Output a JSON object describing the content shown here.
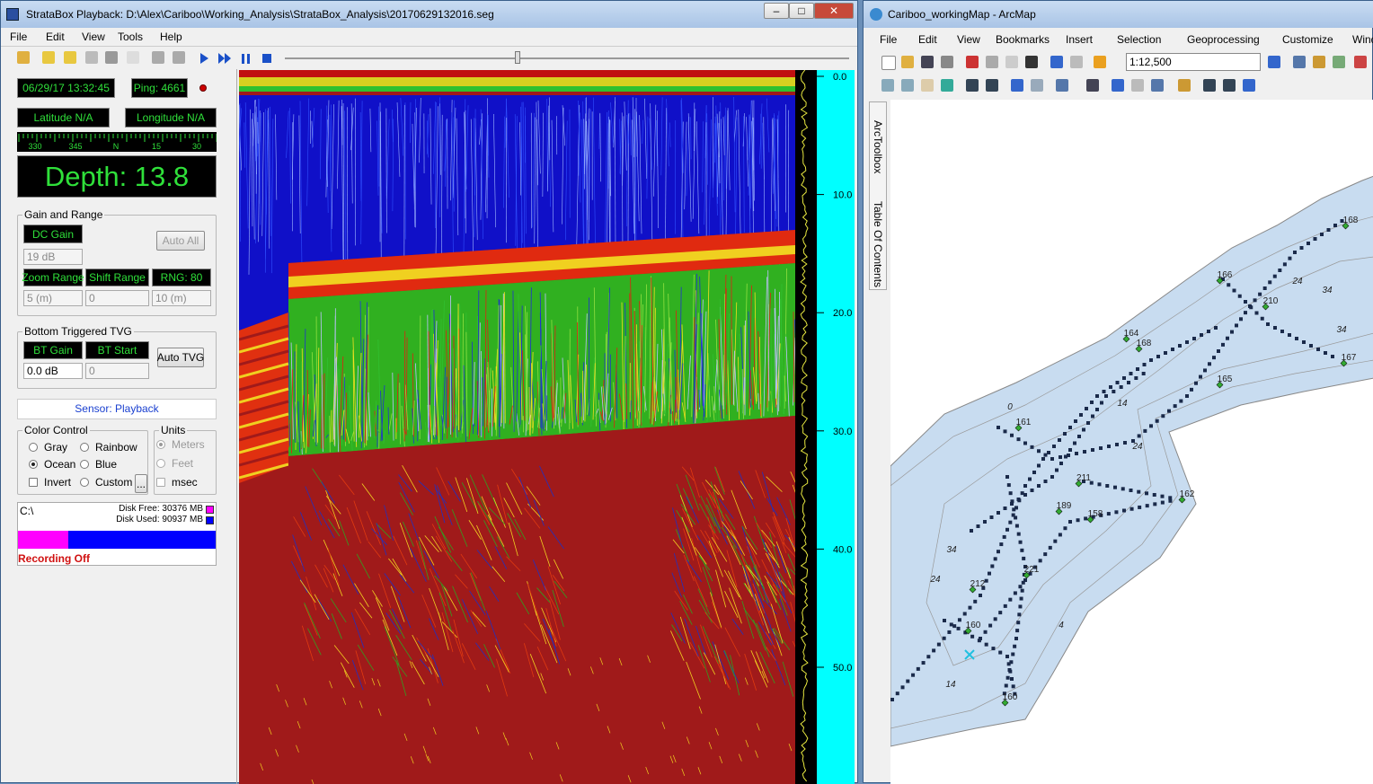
{
  "strata": {
    "title": "StrataBox Playback: D:\\Alex\\Cariboo\\Working_Analysis\\StrataBox_Analysis\\20170629132016.seg",
    "menu": [
      "File",
      "Edit",
      "View",
      "Tools",
      "Help"
    ],
    "datetime": "06/29/17 13:32:45",
    "ping": "Ping: 4661",
    "latitude": "Latitude N/A",
    "longitude": "Longitude N/A",
    "compass": [
      "330",
      "345",
      "N",
      "15",
      "30"
    ],
    "depth": "Depth: 13.8",
    "gain_range": {
      "label": "Gain and Range",
      "dc_gain": "DC Gain",
      "auto_all": "Auto All",
      "dc_gain_value": "19 dB",
      "zoom_range": "Zoom Range",
      "shift_range": "Shift Range",
      "rng": "RNG: 80",
      "zoom_value": "5 (m)",
      "shift_value": "0",
      "rng_value": "10 (m)"
    },
    "tvg": {
      "label": "Bottom Triggered TVG",
      "bt_gain": "BT Gain",
      "bt_start": "BT Start",
      "auto_tvg": "Auto TVG",
      "bt_gain_value": "0.0 dB",
      "bt_start_value": "0"
    },
    "sensor": "Sensor: Playback",
    "color_control": {
      "label": "Color Control",
      "options": [
        "Gray",
        "Rainbow",
        "Ocean",
        "Blue",
        "Invert",
        "Custom"
      ],
      "more": "..."
    },
    "units": {
      "label": "Units",
      "options": [
        "Meters",
        "Feet",
        "msec"
      ]
    },
    "disk": {
      "drive": "C:\\",
      "free": "Disk Free: 30376 MB",
      "used": "Disk Used: 90937 MB",
      "status": "Recording Off"
    },
    "depth_scale": [
      "0.0",
      "10.0",
      "20.0",
      "30.0",
      "40.0",
      "50.0"
    ]
  },
  "arcmap": {
    "title": "Cariboo_workingMap - ArcMap",
    "menu": [
      "File",
      "Edit",
      "View",
      "Bookmarks",
      "Insert",
      "Selection",
      "Geoprocessing",
      "Customize",
      "Windows",
      "Help"
    ],
    "scale": "1:12,500",
    "tabs": [
      "ArcToolbox",
      "Table Of Contents"
    ],
    "map_labels": [
      "168",
      "166",
      "210",
      "24",
      "34",
      "164",
      "168",
      "165",
      "34",
      "167",
      "0",
      "161",
      "14",
      "24",
      "211",
      "162",
      "189",
      "158",
      "34",
      "24",
      "221",
      "212",
      "4",
      "160",
      "14",
      "160"
    ]
  }
}
